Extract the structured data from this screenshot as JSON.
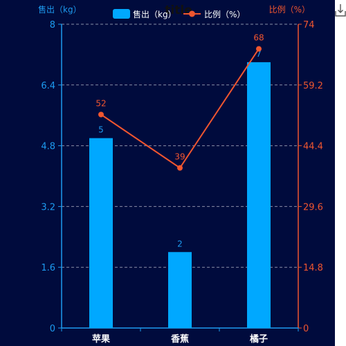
{
  "toolbar": {
    "download_icon": "download-icon"
  },
  "colors": {
    "background": "#000b3d",
    "bar": "#00a8ff",
    "line": "#f0562f",
    "left_axis": "#1d9bf0",
    "right_axis": "#f0562f",
    "category_text": "#ffffff",
    "grid": "#8a8fa8",
    "title": "#111111"
  },
  "chart_data": {
    "type": "bar",
    "title": "title",
    "categories": [
      "苹果",
      "香蕉",
      "橘子"
    ],
    "series": [
      {
        "name": "售出（kg）",
        "type": "bar",
        "axis": "left",
        "values": [
          5,
          2,
          7
        ]
      },
      {
        "name": "比例（%）",
        "type": "line",
        "axis": "right",
        "values": [
          52,
          39,
          68
        ]
      }
    ],
    "y_left": {
      "label": "售出（kg）",
      "ylim": [
        0,
        8
      ],
      "ticks": [
        "0",
        "1.6",
        "3.2",
        "4.8",
        "6.4",
        "8"
      ]
    },
    "y_right": {
      "label": "比例（%）",
      "ylim": [
        0,
        74
      ],
      "ticks": [
        "0",
        "14.8",
        "29.6",
        "44.4",
        "59.2",
        "74"
      ]
    },
    "grid": true,
    "legend": "top"
  }
}
